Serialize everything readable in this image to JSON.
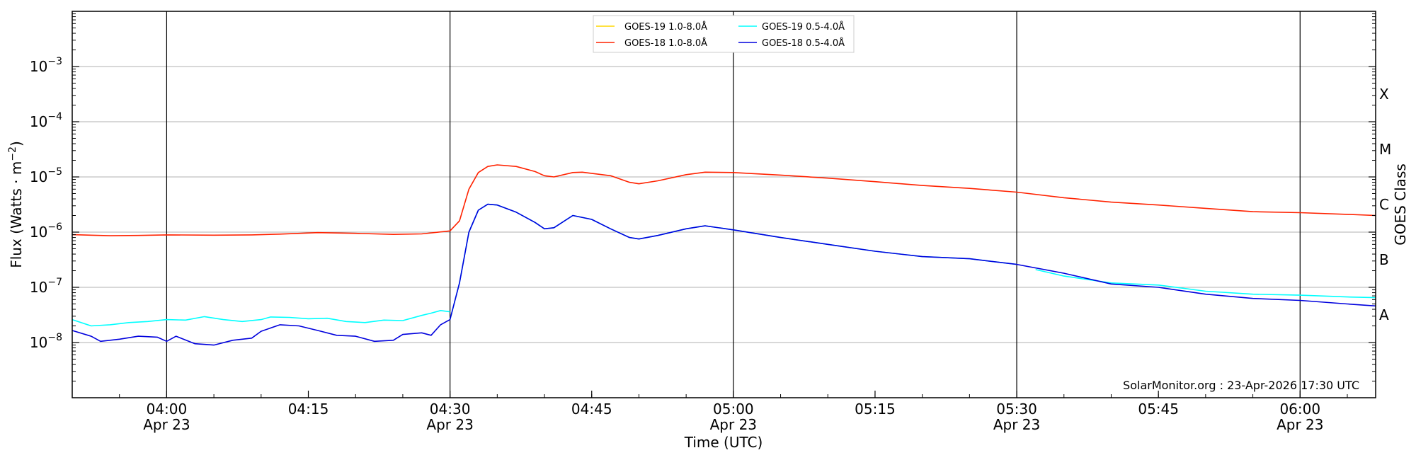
{
  "chart_data": {
    "type": "line",
    "xlabel": "Time (UTC)",
    "ylabel": "Flux (Watts · m^-2)",
    "right_label": "GOES Class",
    "xlim": [
      "03:50",
      "06:08"
    ],
    "ylim": [
      1e-09,
      0.01
    ],
    "y_scale": "log",
    "grid": "horizontal",
    "legend_placement": "top-center",
    "annotation": "SolarMonitor.org : 23-Apr-2026 17:30 UTC",
    "x_ticks": [
      {
        "time": "04:00",
        "date": "Apr 23",
        "major": true
      },
      {
        "time": "04:15",
        "date": "",
        "major": false
      },
      {
        "time": "04:30",
        "date": "Apr 23",
        "major": true
      },
      {
        "time": "04:45",
        "date": "",
        "major": false
      },
      {
        "time": "05:00",
        "date": "Apr 23",
        "major": true
      },
      {
        "time": "05:15",
        "date": "",
        "major": false
      },
      {
        "time": "05:30",
        "date": "Apr 23",
        "major": true
      },
      {
        "time": "05:45",
        "date": "",
        "major": false
      },
      {
        "time": "06:00",
        "date": "Apr 23",
        "major": true
      }
    ],
    "y_ticks": [
      {
        "base": "10",
        "exp": "−8",
        "value": 1e-08
      },
      {
        "base": "10",
        "exp": "−7",
        "value": 1e-07
      },
      {
        "base": "10",
        "exp": "−6",
        "value": 1e-06
      },
      {
        "base": "10",
        "exp": "−5",
        "value": 1e-05
      },
      {
        "base": "10",
        "exp": "−4",
        "value": 0.0001
      },
      {
        "base": "10",
        "exp": "−3",
        "value": 0.001
      }
    ],
    "goes_classes": [
      {
        "label": "A",
        "value": 3.16e-08
      },
      {
        "label": "B",
        "value": 3.16e-07
      },
      {
        "label": "C",
        "value": 3.16e-06
      },
      {
        "label": "M",
        "value": 3.16e-05
      },
      {
        "label": "X",
        "value": 0.000316
      }
    ],
    "series": [
      {
        "name": "GOES-19 1.0-8.0Å",
        "color": "#ffd700",
        "points": []
      },
      {
        "name": "GOES-18 1.0-8.0Å",
        "color": "#ff2200",
        "points": [
          [
            "03:50",
            9e-07
          ],
          [
            "03:54",
            8.6e-07
          ],
          [
            "03:57",
            8.7e-07
          ],
          [
            "04:00",
            8.9e-07
          ],
          [
            "04:05",
            8.8e-07
          ],
          [
            "04:09",
            8.9e-07
          ],
          [
            "04:12",
            9.2e-07
          ],
          [
            "04:16",
            9.8e-07
          ],
          [
            "04:20",
            9.5e-07
          ],
          [
            "04:24",
            9.1e-07
          ],
          [
            "04:27",
            9.3e-07
          ],
          [
            "04:30",
            1.05e-06
          ],
          [
            "04:31",
            1.6e-06
          ],
          [
            "04:32",
            6e-06
          ],
          [
            "04:33",
            1.2e-05
          ],
          [
            "04:34",
            1.55e-05
          ],
          [
            "04:35",
            1.65e-05
          ],
          [
            "04:37",
            1.55e-05
          ],
          [
            "04:39",
            1.25e-05
          ],
          [
            "04:40",
            1.05e-05
          ],
          [
            "04:41",
            1e-05
          ],
          [
            "04:43",
            1.2e-05
          ],
          [
            "04:44",
            1.22e-05
          ],
          [
            "04:47",
            1.05e-05
          ],
          [
            "04:49",
            8e-06
          ],
          [
            "04:50",
            7.5e-06
          ],
          [
            "04:52",
            8.5e-06
          ],
          [
            "04:55",
            1.1e-05
          ],
          [
            "04:57",
            1.22e-05
          ],
          [
            "05:00",
            1.2e-05
          ],
          [
            "05:05",
            1.08e-05
          ],
          [
            "05:10",
            9.5e-06
          ],
          [
            "05:15",
            8.2e-06
          ],
          [
            "05:20",
            7e-06
          ],
          [
            "05:25",
            6.2e-06
          ],
          [
            "05:30",
            5.3e-06
          ],
          [
            "05:35",
            4.2e-06
          ],
          [
            "05:40",
            3.5e-06
          ],
          [
            "05:45",
            3.1e-06
          ],
          [
            "05:50",
            2.7e-06
          ],
          [
            "05:55",
            2.35e-06
          ],
          [
            "06:00",
            2.25e-06
          ],
          [
            "06:05",
            2.1e-06
          ],
          [
            "06:08",
            2e-06
          ]
        ]
      },
      {
        "name": "GOES-19 0.5-4.0Å",
        "color": "#00ffff",
        "points": [
          [
            "03:50",
            2.6e-08
          ],
          [
            "03:52",
            2e-08
          ],
          [
            "03:54",
            2.1e-08
          ],
          [
            "03:56",
            2.3e-08
          ],
          [
            "03:58",
            2.4e-08
          ],
          [
            "04:00",
            2.6e-08
          ],
          [
            "04:02",
            2.55e-08
          ],
          [
            "04:04",
            2.95e-08
          ],
          [
            "04:06",
            2.6e-08
          ],
          [
            "04:08",
            2.4e-08
          ],
          [
            "04:10",
            2.6e-08
          ],
          [
            "04:11",
            2.9e-08
          ],
          [
            "04:13",
            2.85e-08
          ],
          [
            "04:15",
            2.7e-08
          ],
          [
            "04:17",
            2.75e-08
          ],
          [
            "04:19",
            2.4e-08
          ],
          [
            "04:21",
            2.3e-08
          ],
          [
            "04:23",
            2.55e-08
          ],
          [
            "04:25",
            2.5e-08
          ],
          [
            "04:27",
            3.1e-08
          ],
          [
            "04:28",
            3.4e-08
          ],
          [
            "04:29",
            3.8e-08
          ],
          [
            "04:30",
            3.6e-08
          ],
          [
            "05:32",
            2.1e-07
          ],
          [
            "05:35",
            1.6e-07
          ],
          [
            "05:40",
            1.2e-07
          ],
          [
            "05:45",
            1.1e-07
          ],
          [
            "05:50",
            8.5e-08
          ],
          [
            "05:55",
            7.5e-08
          ],
          [
            "06:00",
            7.2e-08
          ],
          [
            "06:05",
            6.7e-08
          ],
          [
            "06:08",
            6.5e-08
          ]
        ]
      },
      {
        "name": "GOES-18 0.5-4.0Å",
        "color": "#0000dd",
        "points": [
          [
            "03:50",
            1.65e-08
          ],
          [
            "03:52",
            1.3e-08
          ],
          [
            "03:53",
            1.05e-08
          ],
          [
            "03:55",
            1.15e-08
          ],
          [
            "03:57",
            1.3e-08
          ],
          [
            "03:59",
            1.25e-08
          ],
          [
            "04:00",
            1.05e-08
          ],
          [
            "04:01",
            1.3e-08
          ],
          [
            "04:03",
            9.5e-09
          ],
          [
            "04:05",
            9e-09
          ],
          [
            "04:07",
            1.1e-08
          ],
          [
            "04:09",
            1.2e-08
          ],
          [
            "04:10",
            1.6e-08
          ],
          [
            "04:12",
            2.1e-08
          ],
          [
            "04:14",
            2e-08
          ],
          [
            "04:16",
            1.65e-08
          ],
          [
            "04:18",
            1.35e-08
          ],
          [
            "04:20",
            1.3e-08
          ],
          [
            "04:22",
            1.05e-08
          ],
          [
            "04:24",
            1.1e-08
          ],
          [
            "04:25",
            1.4e-08
          ],
          [
            "04:27",
            1.5e-08
          ],
          [
            "04:28",
            1.35e-08
          ],
          [
            "04:29",
            2.1e-08
          ],
          [
            "04:30",
            2.6e-08
          ],
          [
            "04:31",
            1.2e-07
          ],
          [
            "04:32",
            1e-06
          ],
          [
            "04:33",
            2.5e-06
          ],
          [
            "04:34",
            3.2e-06
          ],
          [
            "04:35",
            3.1e-06
          ],
          [
            "04:37",
            2.3e-06
          ],
          [
            "04:39",
            1.5e-06
          ],
          [
            "04:40",
            1.15e-06
          ],
          [
            "04:41",
            1.2e-06
          ],
          [
            "04:43",
            2e-06
          ],
          [
            "04:45",
            1.7e-06
          ],
          [
            "04:47",
            1.15e-06
          ],
          [
            "04:49",
            8e-07
          ],
          [
            "04:50",
            7.5e-07
          ],
          [
            "04:52",
            8.7e-07
          ],
          [
            "04:55",
            1.15e-06
          ],
          [
            "04:57",
            1.3e-06
          ],
          [
            "05:00",
            1.1e-06
          ],
          [
            "05:05",
            8e-07
          ],
          [
            "05:10",
            6e-07
          ],
          [
            "05:15",
            4.5e-07
          ],
          [
            "05:20",
            3.6e-07
          ],
          [
            "05:25",
            3.3e-07
          ],
          [
            "05:30",
            2.6e-07
          ],
          [
            "05:35",
            1.8e-07
          ],
          [
            "05:40",
            1.15e-07
          ],
          [
            "05:45",
            1e-07
          ],
          [
            "05:50",
            7.5e-08
          ],
          [
            "05:55",
            6.3e-08
          ],
          [
            "06:00",
            5.8e-08
          ],
          [
            "06:05",
            5e-08
          ],
          [
            "06:08",
            4.6e-08
          ]
        ]
      }
    ]
  }
}
